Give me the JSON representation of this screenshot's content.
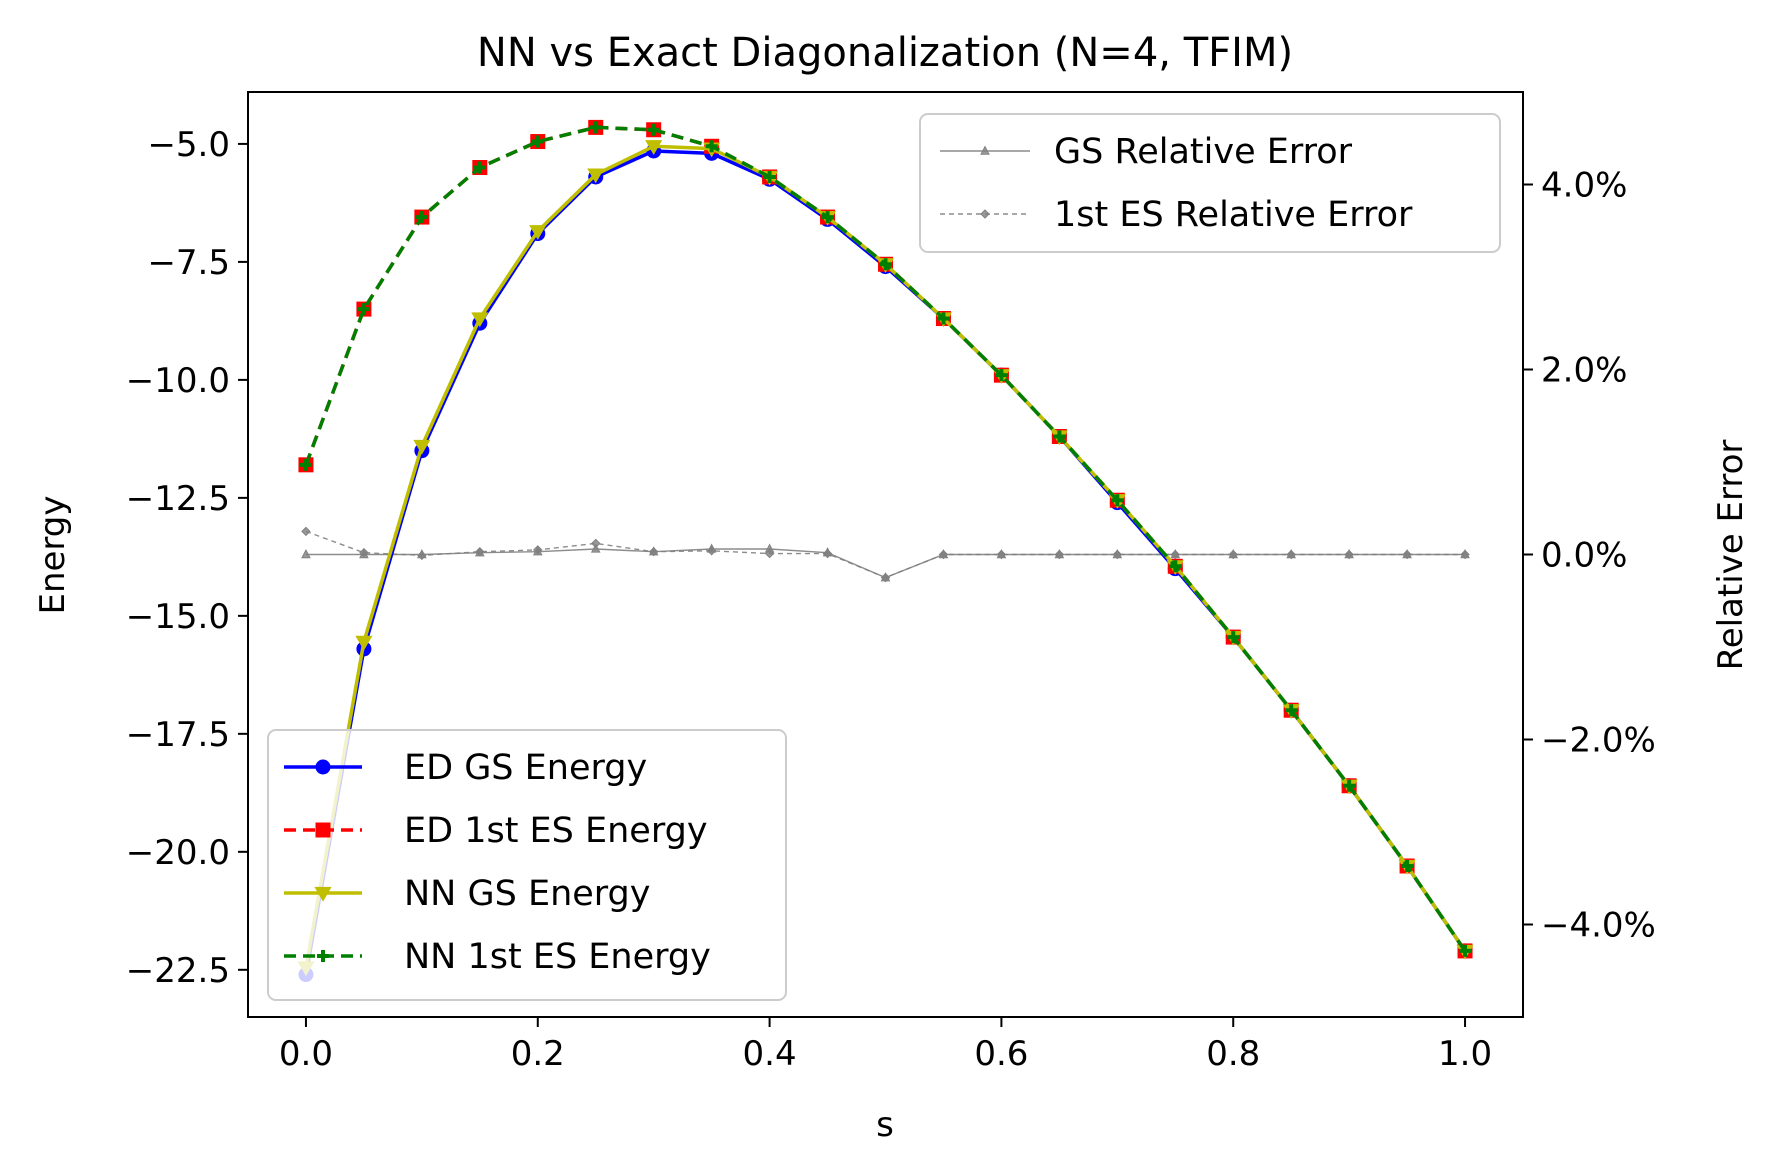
{
  "chart_data": {
    "type": "line",
    "title": "NN vs Exact Diagonalization (N=4, TFIM)",
    "xlabel": "s",
    "ylabel": "Energy",
    "y2label": "Relative Error",
    "xlim": [
      -0.05,
      1.05
    ],
    "ylim": [
      -23.5,
      -3.9
    ],
    "y2lim": [
      -5.0,
      5.0
    ],
    "xticks": [
      0.0,
      0.2,
      0.4,
      0.6,
      0.8,
      1.0
    ],
    "xtick_labels": [
      "0.0",
      "0.2",
      "0.4",
      "0.6",
      "0.8",
      "1.0"
    ],
    "yticks": [
      -5.0,
      -7.5,
      -10.0,
      -12.5,
      -15.0,
      -17.5,
      -20.0,
      -22.5
    ],
    "ytick_labels": [
      "−5.0",
      "−7.5",
      "−10.0",
      "−12.5",
      "−15.0",
      "−17.5",
      "−20.0",
      "−22.5"
    ],
    "y2ticks": [
      4.0,
      2.0,
      0.0,
      -2.0,
      -4.0
    ],
    "y2tick_labels": [
      "4.0%",
      "2.0%",
      "0.0%",
      "−2.0%",
      "−4.0%"
    ],
    "x": [
      0.0,
      0.05,
      0.1,
      0.15,
      0.2,
      0.25,
      0.3,
      0.35,
      0.4,
      0.45,
      0.5,
      0.55,
      0.6,
      0.65,
      0.7,
      0.75,
      0.8,
      0.85,
      0.9,
      0.95,
      1.0
    ],
    "series": [
      {
        "name": "ED GS Energy",
        "axis": "left",
        "color": "#0000ff",
        "linestyle": "solid",
        "marker": "circle",
        "values": [
          -22.6,
          -15.7,
          -11.5,
          -8.8,
          -6.9,
          -5.7,
          -5.15,
          -5.2,
          -5.75,
          -6.6,
          -7.6,
          -8.7,
          -9.9,
          -11.2,
          -12.6,
          -14.0,
          -15.45,
          -17.0,
          -18.6,
          -20.3,
          -22.1
        ]
      },
      {
        "name": "ED 1st ES Energy",
        "axis": "left",
        "color": "#ff0000",
        "linestyle": "dashed",
        "marker": "square",
        "values": [
          -11.8,
          -8.5,
          -6.55,
          -5.5,
          -4.95,
          -4.65,
          -4.7,
          -5.05,
          -5.7,
          -6.55,
          -7.55,
          -8.7,
          -9.9,
          -11.2,
          -12.55,
          -13.95,
          -15.45,
          -17.0,
          -18.6,
          -20.3,
          -22.1
        ]
      },
      {
        "name": "NN GS Energy",
        "axis": "left",
        "color": "#bfbf00",
        "linestyle": "solid",
        "marker": "triangle-down",
        "values": [
          -22.45,
          -15.55,
          -11.4,
          -8.7,
          -6.85,
          -5.65,
          -5.05,
          -5.1,
          -5.7,
          -6.55,
          -7.55,
          -8.7,
          -9.9,
          -11.2,
          -12.55,
          -13.95,
          -15.45,
          -17.0,
          -18.6,
          -20.3,
          -22.1
        ]
      },
      {
        "name": "NN 1st ES Energy",
        "axis": "left",
        "color": "#008000",
        "linestyle": "dashed",
        "marker": "plus",
        "values": [
          -11.8,
          -8.5,
          -6.55,
          -5.5,
          -4.95,
          -4.65,
          -4.7,
          -5.05,
          -5.7,
          -6.55,
          -7.55,
          -8.7,
          -9.9,
          -11.2,
          -12.55,
          -13.95,
          -15.45,
          -17.0,
          -18.6,
          -20.3,
          -22.1
        ]
      },
      {
        "name": "GS Relative Error",
        "axis": "right",
        "color": "#808080",
        "linestyle": "solid",
        "marker": "triangle-up",
        "values": [
          0.0,
          0.0,
          0.0,
          0.02,
          0.03,
          0.06,
          0.03,
          0.06,
          0.06,
          0.02,
          -0.25,
          0.0,
          0.0,
          0.0,
          0.0,
          0.0,
          0.0,
          0.0,
          0.0,
          0.0,
          0.0
        ]
      },
      {
        "name": "1st ES Relative Error",
        "axis": "right",
        "color": "#808080",
        "linestyle": "dashed",
        "marker": "diamond",
        "values": [
          0.25,
          0.02,
          -0.01,
          0.03,
          0.05,
          0.12,
          0.03,
          0.04,
          0.01,
          0.01,
          -0.25,
          0.0,
          0.0,
          0.0,
          0.0,
          0.0,
          0.0,
          0.0,
          0.0,
          0.0,
          0.0
        ]
      }
    ],
    "legend_right_entries": [
      "GS Relative Error",
      "1st ES Relative Error"
    ],
    "legend_left_entries": [
      "ED GS Energy",
      "ED 1st ES Energy",
      "NN GS Energy",
      "NN 1st ES Energy"
    ],
    "legend_right_position": "upper-right",
    "legend_left_position": "lower-left",
    "grid": false
  }
}
